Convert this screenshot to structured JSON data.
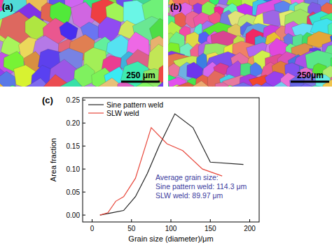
{
  "figure": {
    "panel_a": "(a)",
    "scale_a": "250 μm",
    "panel_b": "(b)",
    "scale_b": "250μm",
    "panel_c": "(c)"
  },
  "chart_data": {
    "type": "line",
    "x_label": "Grain size (diameter)/μm",
    "y_label": "Area fraction",
    "xlim": [
      -12,
      212
    ],
    "xticks": [
      0,
      50,
      100,
      150,
      200
    ],
    "ylim": [
      -0.015,
      0.255
    ],
    "yticks": [
      {
        "value": 0,
        "label": "0.00"
      },
      {
        "value": 0.05,
        "label": "0.05"
      },
      {
        "value": 0.1,
        "label": "0.10"
      },
      {
        "value": 0.15,
        "label": "0.15"
      },
      {
        "value": 0.2,
        "label": "0.20"
      },
      {
        "value": 0.25,
        "label": "0.25"
      }
    ],
    "grid": false,
    "legend": "upper left",
    "annotations": [
      "Average grain size:",
      "Sine pattern weld: 114.3 μm",
      "SLW weld: 89.97 μm"
    ],
    "series": [
      {
        "name": "Sine pattern weld",
        "color": "#222222",
        "x": [
          10,
          25,
          40,
          55,
          70,
          85,
          105,
          128,
          150,
          192
        ],
        "values": [
          0,
          0.005,
          0.01,
          0.04,
          0.09,
          0.15,
          0.22,
          0.19,
          0.115,
          0.11
        ]
      },
      {
        "name": "SLW weld",
        "color": "#e8473b",
        "x": [
          10,
          20,
          30,
          40,
          55,
          75,
          95,
          115,
          140,
          165
        ],
        "values": [
          0,
          0.005,
          0.03,
          0.04,
          0.08,
          0.19,
          0.155,
          0.14,
          0.1,
          0.085
        ]
      }
    ]
  }
}
